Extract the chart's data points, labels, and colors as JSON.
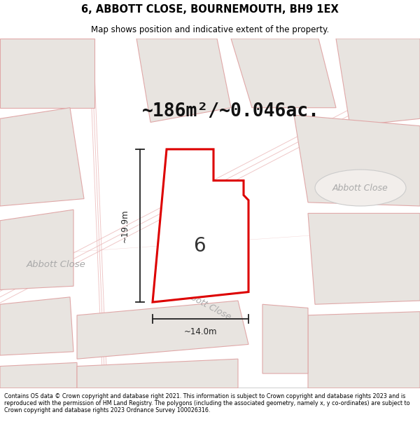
{
  "title_line1": "6, ABBOTT CLOSE, BOURNEMOUTH, BH9 1EX",
  "title_line2": "Map shows position and indicative extent of the property.",
  "area_text": "~186m²/~0.046ac.",
  "lot_number": "6",
  "width_label": "~14.0m",
  "height_label": "~19.9m",
  "footer_text": "Contains OS data © Crown copyright and database right 2021. This information is subject to Crown copyright and database rights 2023 and is reproduced with the permission of HM Land Registry. The polygons (including the associated geometry, namely x, y co-ordinates) are subject to Crown copyright and database rights 2023 Ordnance Survey 100026316.",
  "map_bg_color": "#f2eeeb",
  "plot_fill": "#ffffff",
  "plot_edge_color": "#dd0000",
  "block_fill": "#e8e4e0",
  "block_edge": "#e0a8a8",
  "road_label_color": "#aaaaaa",
  "dim_color": "#222222",
  "title_bg": "#ffffff",
  "footer_bg": "#ffffff"
}
